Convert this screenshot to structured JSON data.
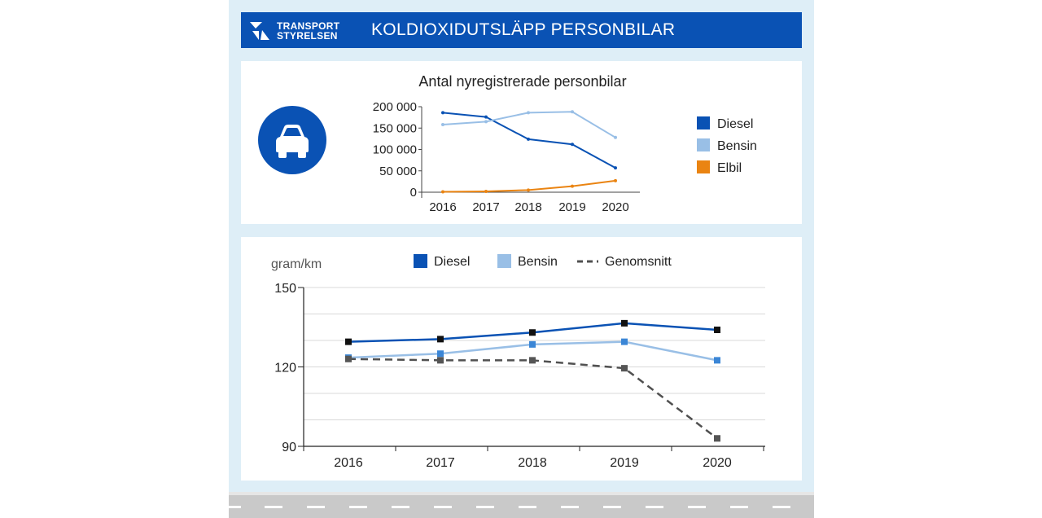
{
  "header": {
    "logo_line1": "TRANSPORT",
    "logo_line2": "STYRELSEN",
    "title": "KOLDIOXIDUTSLÄPP PERSONBILAR"
  },
  "colors": {
    "diesel": "#0a52b4",
    "bensin": "#99bfe6",
    "elbil": "#ea8412",
    "genomsnitt": "#505050",
    "banner": "#0a52b4"
  },
  "icons": {
    "logo": "transportstyrelsen-logo-icon",
    "car": "car-icon"
  },
  "chart_data": [
    {
      "type": "line",
      "title": "Antal nyregistrerade personbilar",
      "categories": [
        "2016",
        "2017",
        "2018",
        "2019",
        "2020"
      ],
      "y_ticks": [
        0,
        50000,
        100000,
        150000,
        200000
      ],
      "y_tick_labels": [
        "0",
        "50 000",
        "100 000",
        "150 000",
        "200 000"
      ],
      "ylim": [
        0,
        200000
      ],
      "legend_position": "right",
      "series": [
        {
          "name": "Diesel",
          "color": "#0a52b4",
          "values": [
            186000,
            176000,
            124000,
            112000,
            57000
          ]
        },
        {
          "name": "Bensin",
          "color": "#99bfe6",
          "values": [
            158000,
            165000,
            186000,
            188000,
            128000
          ]
        },
        {
          "name": "Elbil",
          "color": "#ea8412",
          "values": [
            1000,
            2000,
            5000,
            14000,
            27000
          ]
        }
      ]
    },
    {
      "type": "line",
      "ylabel": "gram/km",
      "categories": [
        "2016",
        "2017",
        "2018",
        "2019",
        "2020"
      ],
      "y_ticks": [
        90,
        120,
        150
      ],
      "y_tick_labels": [
        "90",
        "120",
        "150"
      ],
      "ylim": [
        90,
        150
      ],
      "grid": true,
      "legend_position": "top",
      "series": [
        {
          "name": "Diesel",
          "color": "#0a52b4",
          "values": [
            129.5,
            130.5,
            133,
            136.5,
            134
          ]
        },
        {
          "name": "Bensin",
          "color": "#99bfe6",
          "values": [
            123.5,
            125,
            128.5,
            129.5,
            122.5
          ]
        },
        {
          "name": "Genomsnitt",
          "color": "#505050",
          "dashed": true,
          "values": [
            123,
            122.5,
            122.5,
            119.5,
            93
          ]
        }
      ]
    }
  ]
}
